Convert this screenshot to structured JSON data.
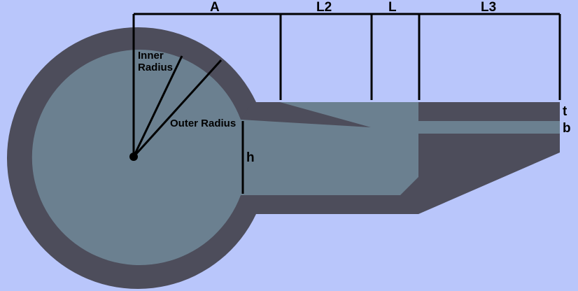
{
  "colors": {
    "background": "#b9c6fb",
    "housing": "#4d4d5b",
    "cavity": "#6b8090",
    "lines": "#000000"
  },
  "labels": {
    "dim_a": "A",
    "dim_l2": "L2",
    "dim_l": "L",
    "dim_l3": "L3",
    "inner_radius_line1": "Inner",
    "inner_radius_line2": "Radius",
    "outer_radius": "Outer Radius",
    "h": "h",
    "t": "t",
    "b": "b"
  }
}
